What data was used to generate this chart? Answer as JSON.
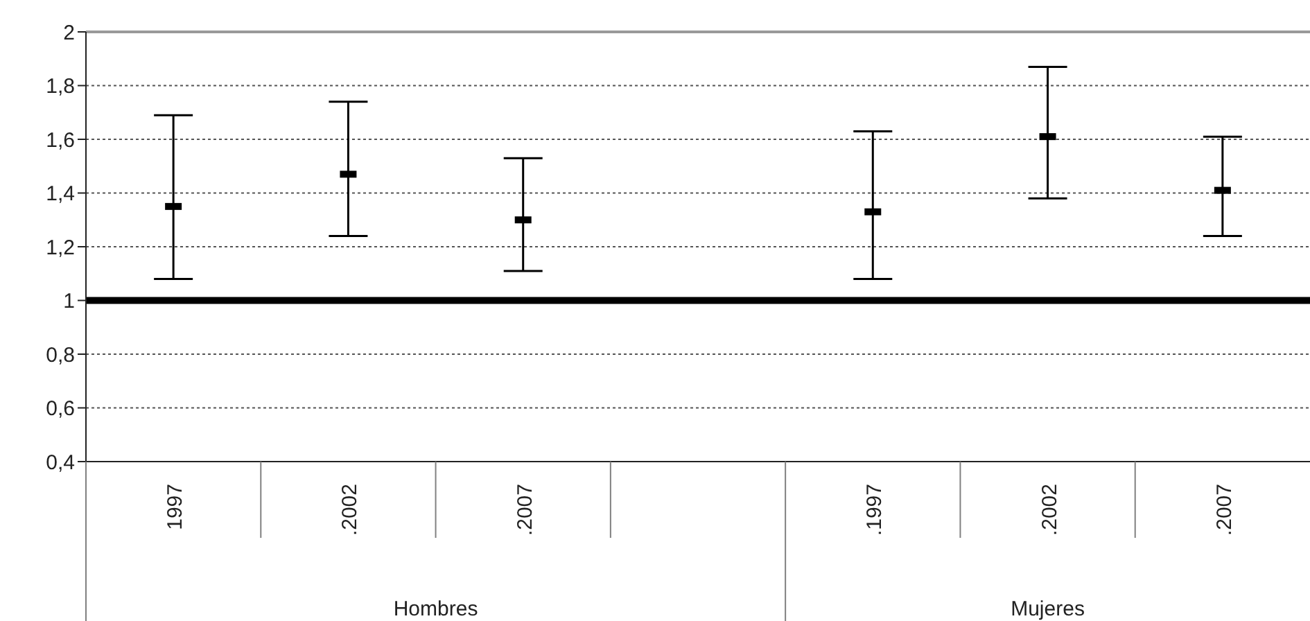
{
  "chart_data": {
    "type": "scatter",
    "categories": [
      "1997",
      ".2002",
      ".2007",
      null,
      ".1997",
      ".2002",
      ".2007"
    ],
    "values": [
      1.35,
      1.47,
      1.3,
      null,
      1.33,
      1.61,
      1.41
    ],
    "errors": [
      [
        1.08,
        1.69
      ],
      [
        1.24,
        1.74
      ],
      [
        1.11,
        1.53
      ],
      null,
      [
        1.08,
        1.63
      ],
      [
        1.38,
        1.87
      ],
      [
        1.24,
        1.61
      ]
    ],
    "color": "#000000",
    "ylim": [
      0.4,
      2
    ],
    "yticks": [
      {
        "value": 0.4,
        "label": "0,4"
      },
      {
        "value": 0.6,
        "label": "0,6"
      },
      {
        "value": 0.8,
        "label": "0,8"
      },
      1,
      {
        "value": 1.2,
        "label": "1,2"
      },
      {
        "value": 1.4,
        "label": "1,4"
      },
      {
        "value": 1.6,
        "label": "1,6"
      },
      {
        "value": 1.8,
        "label": "1,8"
      },
      2
    ],
    "grid": "y",
    "ref_lines": [
      {
        "axis": "y",
        "value": 1,
        "color": "#000000"
      }
    ],
    "annotations": [
      "Hombres",
      "Mujeres"
    ]
  }
}
